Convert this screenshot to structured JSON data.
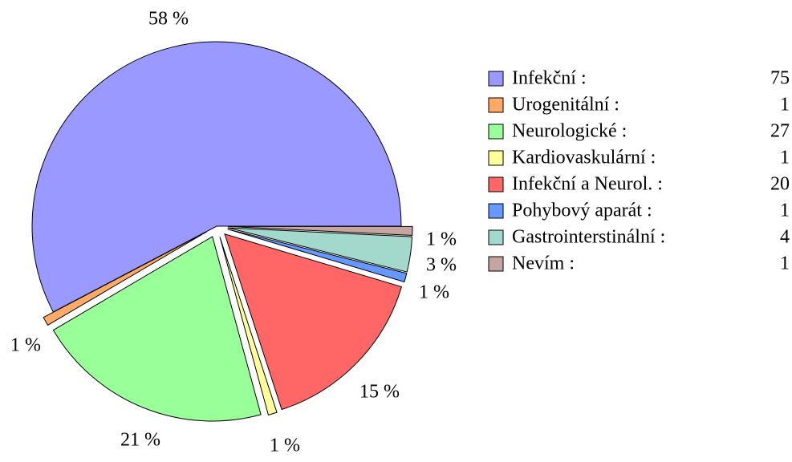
{
  "chart_data": {
    "type": "pie",
    "categories": [
      "Infekční :",
      "Urogenitální :",
      "Neurologické :",
      "Kardiovaskulární :",
      "Infekční a Neurol. :",
      "Pohybový aparát :",
      "Gastrointerstinální :",
      "Nevím :"
    ],
    "values": [
      75,
      1,
      27,
      1,
      20,
      1,
      4,
      1
    ],
    "percent_labels": [
      "58 %",
      "1 %",
      "21 %",
      "1 %",
      "15 %",
      "1 %",
      "3 %",
      "1 %"
    ],
    "colors": [
      "#9999ff",
      "#ffaa66",
      "#99ff99",
      "#ffff99",
      "#ff6666",
      "#6699ff",
      "#a3d9cc",
      "#c4a5a0"
    ],
    "legend": "right"
  }
}
